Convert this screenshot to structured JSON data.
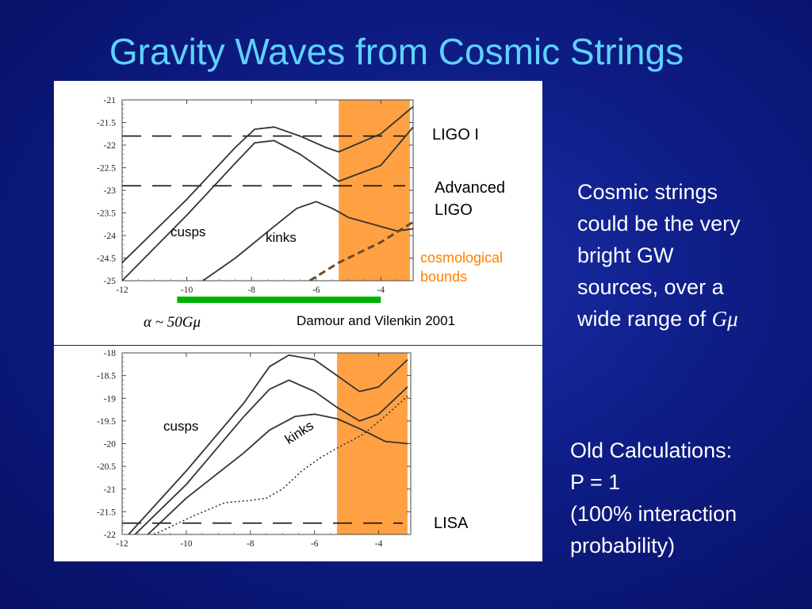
{
  "slide": {
    "title": "Gravity Waves from Cosmic Strings",
    "right_text_1": [
      "Cosmic strings",
      "could be the very",
      "bright GW",
      "sources, over a",
      "wide range of "
    ],
    "right_text_1_symbol": "Gμ",
    "right_text_2": [
      "Old Calculations:",
      "P = 1",
      "(100% interaction",
      "probability)"
    ]
  },
  "colors": {
    "background": "#0e1d86",
    "title": "#5ed2ff",
    "band": "#ff9933",
    "green_bar": "#00b300",
    "cosmological_label": "#ff8000",
    "curve": "#333333"
  },
  "chart_data": [
    {
      "type": "line",
      "title": "",
      "xlabel": "",
      "ylabel": "",
      "xlim": [
        -12,
        -3
      ],
      "ylim": [
        -25,
        -21
      ],
      "x_ticks": [
        -12,
        -10,
        -8,
        -6,
        -4
      ],
      "y_ticks": [
        -21,
        -21.5,
        -22,
        -22.5,
        -23,
        -23.5,
        -24,
        -24.5,
        -25
      ],
      "tick_labels_x": [
        "-12",
        "-10",
        "-8",
        "-6",
        "-4"
      ],
      "tick_labels_y": [
        "-21",
        "-21.5",
        "-22",
        "-22.5",
        "-23",
        "-23.5",
        "-24",
        "-24.5",
        "-25"
      ],
      "shaded_band_x": [
        -5.3,
        -3.1
      ],
      "series": [
        {
          "style": "solid",
          "x": [
            -12,
            -10,
            -8.5,
            -7.9,
            -7.3,
            -6.5,
            -5.7,
            -5.3,
            -4,
            -3
          ],
          "y": [
            -24.6,
            -23.2,
            -22.05,
            -21.65,
            -21.6,
            -21.8,
            -22.05,
            -22.15,
            -21.75,
            -21.15
          ]
        },
        {
          "style": "solid",
          "x": [
            -12,
            -10,
            -8.5,
            -7.9,
            -7.3,
            -6.5,
            -5.7,
            -5.3,
            -4,
            -3
          ],
          "y": [
            -25.0,
            -23.55,
            -22.4,
            -21.95,
            -21.9,
            -22.2,
            -22.6,
            -22.8,
            -22.45,
            -21.6
          ]
        },
        {
          "style": "solid",
          "x": [
            -9.5,
            -8.5,
            -7.3,
            -6.6,
            -6.0,
            -5.5,
            -5.0,
            -4.5,
            -4.0,
            -3.5,
            -3.0
          ],
          "y": [
            -25.0,
            -24.5,
            -23.8,
            -23.4,
            -23.25,
            -23.4,
            -23.6,
            -23.7,
            -23.8,
            -23.9,
            -23.85
          ]
        },
        {
          "style": "dashed",
          "x": [
            -6.2,
            -5.3,
            -4.0,
            -3.0
          ],
          "y": [
            -25.0,
            -24.6,
            -24.15,
            -23.7
          ]
        }
      ],
      "reference_lines": [
        {
          "label": "LIGO I",
          "y": -21.8
        },
        {
          "label": "Advanced LIGO",
          "y": -22.9
        }
      ],
      "annotations": [
        "cusps",
        "kinks",
        "cosmological bounds",
        "Damour and Vilenkin 2001"
      ],
      "alpha_label_prefix": "α ~ ",
      "alpha_label_expr": "50Gμ",
      "green_bar_x": [
        -10.3,
        -4.0
      ]
    },
    {
      "type": "line",
      "title": "",
      "xlabel": "",
      "ylabel": "",
      "xlim": [
        -12,
        -3
      ],
      "ylim": [
        -22,
        -18
      ],
      "x_ticks": [
        -12,
        -10,
        -8,
        -6,
        -4
      ],
      "y_ticks": [
        -18,
        -18.5,
        -19,
        -19.5,
        -20,
        -20.5,
        -21,
        -21.5,
        -22
      ],
      "tick_labels_x": [
        "-12",
        "-10",
        "-8",
        "-6",
        "-4"
      ],
      "tick_labels_y": [
        "-18",
        "-18.5",
        "-19",
        "-19.5",
        "-20",
        "-20.5",
        "-21",
        "-21.5",
        "-22"
      ],
      "shaded_band_x": [
        -5.3,
        -3.1
      ],
      "series": [
        {
          "style": "solid",
          "x": [
            -11.8,
            -10,
            -8.2,
            -7.4,
            -6.8,
            -6.0,
            -5.3,
            -4.6,
            -4.0,
            -3.1
          ],
          "y": [
            -22.0,
            -20.6,
            -19.1,
            -18.3,
            -18.05,
            -18.15,
            -18.5,
            -18.85,
            -18.75,
            -18.15
          ]
        },
        {
          "style": "solid",
          "x": [
            -11.6,
            -10,
            -8.2,
            -7.4,
            -6.8,
            -6.0,
            -5.3,
            -4.6,
            -4.0,
            -3.1
          ],
          "y": [
            -22.0,
            -20.9,
            -19.4,
            -18.8,
            -18.6,
            -18.85,
            -19.2,
            -19.5,
            -19.35,
            -18.75
          ]
        },
        {
          "style": "solid",
          "x": [
            -11.2,
            -10,
            -8.2,
            -7.4,
            -6.6,
            -6.0,
            -5.3,
            -4.5,
            -3.8,
            -3.1
          ],
          "y": [
            -22.0,
            -21.2,
            -20.2,
            -19.7,
            -19.4,
            -19.35,
            -19.45,
            -19.7,
            -19.95,
            -20.0
          ]
        },
        {
          "style": "dotted",
          "x": [
            -11.0,
            -9.8,
            -8.8,
            -8.0,
            -7.5,
            -7.0,
            -6.4,
            -5.8,
            -5.3,
            -4.5,
            -3.8,
            -3.1
          ],
          "y": [
            -22.0,
            -21.6,
            -21.3,
            -21.25,
            -21.2,
            -21.0,
            -20.6,
            -20.3,
            -20.1,
            -19.8,
            -19.4,
            -18.95
          ]
        }
      ],
      "reference_lines": [
        {
          "label": "LISA",
          "y": -21.75
        }
      ],
      "annotations": [
        "cusps",
        "kinks"
      ]
    }
  ]
}
